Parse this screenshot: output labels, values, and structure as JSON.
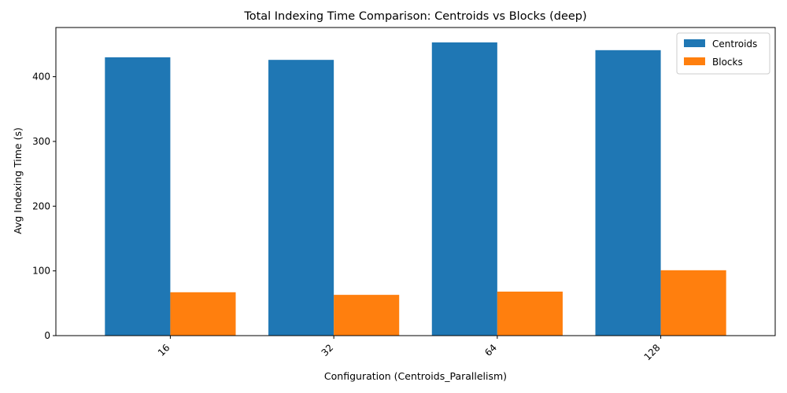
{
  "chart_data": {
    "type": "bar",
    "title": "Total Indexing Time Comparison: Centroids vs Blocks (deep)",
    "xlabel": "Configuration (Centroids_Parallelism)",
    "ylabel": "Avg Indexing Time (s)",
    "categories": [
      "16",
      "32",
      "64",
      "128"
    ],
    "series": [
      {
        "name": "Centroids",
        "color": "#1f77b4",
        "values": [
          430,
          426,
          453,
          441
        ]
      },
      {
        "name": "Blocks",
        "color": "#ff7f0e",
        "values": [
          67,
          63,
          68,
          101
        ]
      }
    ],
    "ylim": [
      0,
      476
    ],
    "yticks": [
      0,
      100,
      200,
      300,
      400
    ],
    "grid": false,
    "legend_position": "top-right",
    "xtick_rotation": 45
  }
}
